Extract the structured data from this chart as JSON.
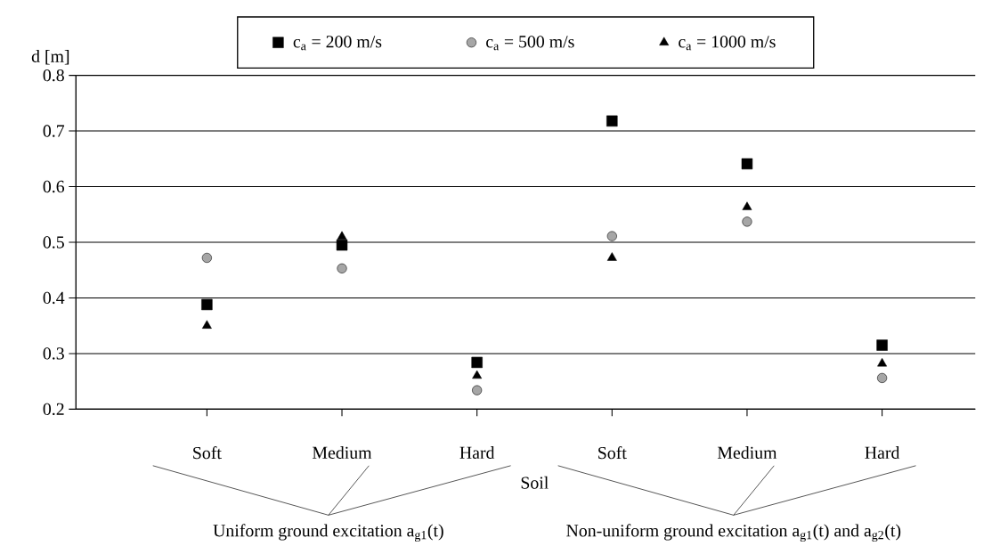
{
  "chart_data": {
    "type": "scatter",
    "ylabel": "d [m]",
    "xlabel": "Soil",
    "categories": [
      "Soft",
      "Medium",
      "Hard",
      "Soft",
      "Medium",
      "Hard"
    ],
    "series": [
      {
        "name": "c$_{a}$ = 200 m/s",
        "color": "#000000",
        "marker": "square",
        "values": [
          0.388,
          0.495,
          0.284,
          0.718,
          0.641,
          0.315
        ]
      },
      {
        "name": "c$_{a}$ = 500 m/s",
        "color": "#a6a6a6",
        "marker": "circle",
        "values": [
          0.472,
          0.453,
          0.234,
          0.511,
          0.537,
          0.256
        ]
      },
      {
        "name": "c$_{a}$ = 1000 m/s",
        "color": "#000000",
        "marker": "triangle",
        "values": [
          0.35,
          0.51,
          0.26,
          0.472,
          0.563,
          0.282
        ]
      }
    ],
    "ylim": [
      0.2,
      0.8
    ],
    "yticks": [
      0.2,
      0.3,
      0.4,
      0.5,
      0.6,
      0.7,
      0.8
    ],
    "grid": "y",
    "legend": "top",
    "annotations": [
      "Uniform ground excitation a$_{g1}$(t)",
      "Non-uniform ground excitation a$_{g1}$(t) and a$_{g2}$(t)"
    ]
  }
}
